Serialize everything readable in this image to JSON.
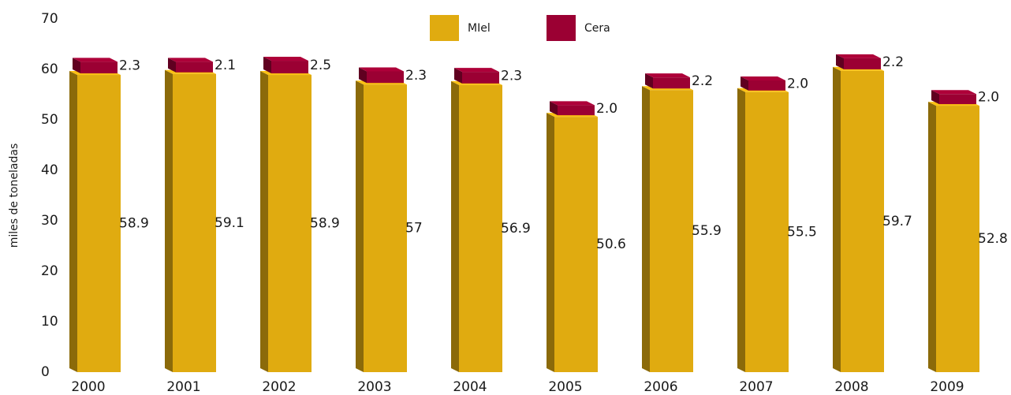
{
  "chart_data": {
    "type": "bar3d_stacked",
    "y_label": "miles de toneladas",
    "categories": [
      "2000",
      "2001",
      "2002",
      "2003",
      "2004",
      "2005",
      "2006",
      "2007",
      "2008",
      "2009"
    ],
    "series": [
      {
        "name": "MIel",
        "color": "#e0ab10",
        "values": [
          58.9,
          59.1,
          58.9,
          57.0,
          56.9,
          50.6,
          55.9,
          55.5,
          59.7,
          52.8
        ]
      },
      {
        "name": "Cera",
        "color": "#9b0033",
        "values": [
          2.3,
          2.1,
          2.5,
          2.3,
          2.3,
          2.0,
          2.2,
          2.0,
          2.2,
          2.0
        ],
        "value_labels": [
          "2.3",
          "2.1",
          "2.5",
          "2.3",
          "2.3",
          "2.0",
          "2.2",
          "2.0",
          "2.2",
          "2.0"
        ]
      }
    ],
    "ylim": [
      0,
      70
    ],
    "yticks": [
      0,
      10,
      20,
      30,
      40,
      50,
      60,
      70
    ]
  }
}
